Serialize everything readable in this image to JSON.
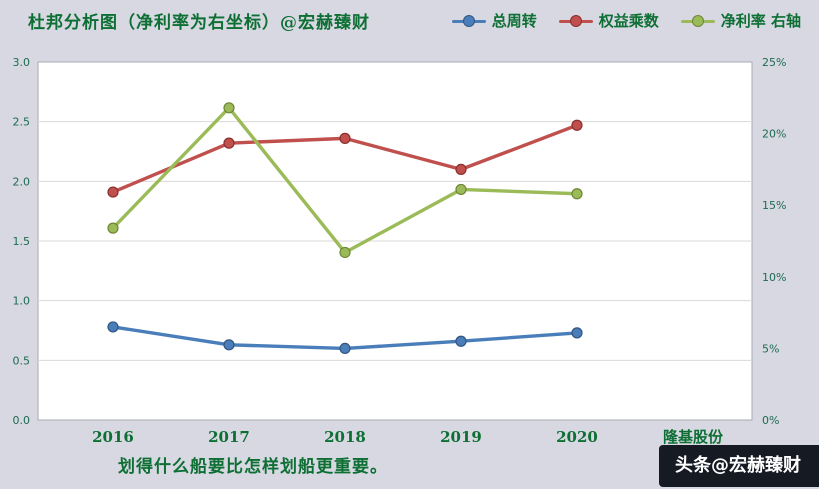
{
  "page": {
    "title": "杜邦分析图（净利率为右坐标）@宏赫臻财",
    "footer_note": "划得什么船要比怎样划船更重要。",
    "watermark": "头条@宏赫臻财"
  },
  "chart_data": {
    "type": "line",
    "title": "杜邦分析图（净利率为右坐标）@宏赫臻财",
    "categories": [
      "2016",
      "2017",
      "2018",
      "2019",
      "2020",
      "隆基股份"
    ],
    "series": [
      {
        "name": "总周转",
        "axis": "left",
        "color": "#4a7ebb",
        "marker_stroke": "#33567f",
        "values": [
          0.78,
          0.63,
          0.6,
          0.66,
          0.73
        ]
      },
      {
        "name": "权益乘数",
        "axis": "left",
        "color": "#c0504d",
        "marker_stroke": "#8a2f2c",
        "values": [
          1.91,
          2.32,
          2.36,
          2.1,
          2.47
        ]
      },
      {
        "name": "净利率 右轴",
        "axis": "right",
        "color": "#9bbb59",
        "marker_stroke": "#6f8636",
        "values": [
          13.4,
          21.8,
          11.7,
          16.1,
          15.8
        ]
      }
    ],
    "left_axis": {
      "min": 0,
      "max": 3,
      "step": 0.5,
      "ticks": [
        "0.0",
        "0.5",
        "1.0",
        "1.5",
        "2.0",
        "2.5",
        "3.0"
      ]
    },
    "right_axis": {
      "min": 0,
      "max": 25,
      "step": 5,
      "ticks": [
        "0%",
        "5%",
        "10%",
        "15%",
        "20%",
        "25%"
      ]
    },
    "grid": true,
    "legend_position": "top-right"
  },
  "colors": {
    "background": "#d7d8e2",
    "plot_bg": "#ffffff",
    "plot_border": "#a8aab2",
    "grid": "#d9d9d9",
    "title_text": "#0e6f34",
    "axis_tick_text": "#1e6b50",
    "category_text": "#0e6f34",
    "footer_text": "#0e6f34",
    "watermark_bg": "#151a23",
    "watermark_text": "#ffffff"
  }
}
